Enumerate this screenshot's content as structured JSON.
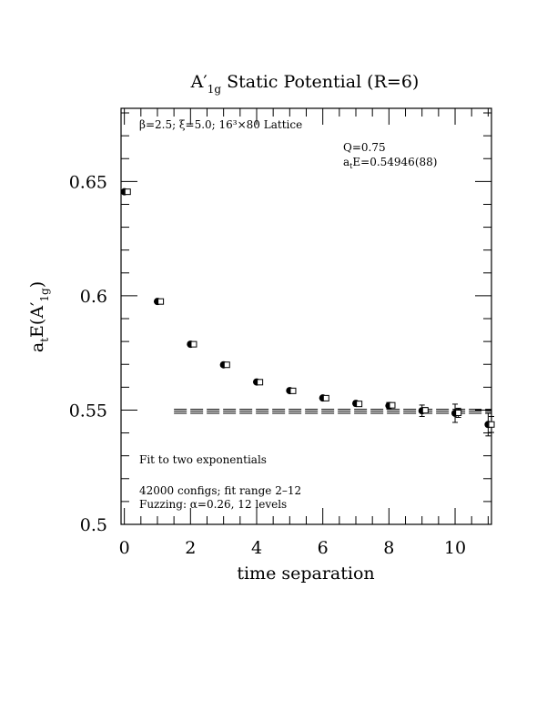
{
  "chart_data": {
    "type": "scatter",
    "title": "A′1g Static Potential (R=6)",
    "title_main": "A",
    "title_prime": "′",
    "title_sub": "1g",
    "title_rest": " Static Potential (R=6)",
    "xlabel": "time separation",
    "ylabel": "a_t E(A′1g)",
    "ylabel_parts": {
      "a": "a",
      "t": "t",
      "E": "E(A",
      "prime": "′",
      "sub": "1g",
      "close": ")"
    },
    "xlim": [
      -0.1,
      11.1
    ],
    "ylim": [
      0.5,
      0.682
    ],
    "xticks": [
      0,
      2,
      4,
      6,
      8,
      10
    ],
    "xtick_labels": [
      "0",
      "2",
      "4",
      "6",
      "8",
      "10"
    ],
    "yticks": [
      0.5,
      0.55,
      0.6,
      0.65
    ],
    "ytick_labels": [
      "0.5",
      "0.55",
      "0.6",
      "0.65"
    ],
    "series": [
      {
        "marker": "filled-circle",
        "x": [
          0,
          1,
          2,
          3,
          4,
          5,
          6,
          7,
          8,
          9,
          10,
          11
        ],
        "y": [
          0.6455,
          0.5975,
          0.5788,
          0.5698,
          0.5623,
          0.5585,
          0.5553,
          0.5529,
          0.5519,
          0.5497,
          0.5486,
          0.5437
        ],
        "err": [
          0.0004,
          0.0005,
          0.0005,
          0.0005,
          0.0006,
          0.0007,
          0.0008,
          0.001,
          0.0014,
          0.0025,
          0.004,
          0.005
        ]
      },
      {
        "marker": "open-square",
        "x": [
          0.1,
          1.1,
          2.1,
          3.1,
          4.1,
          5.1,
          6.1,
          7.1,
          8.1,
          9.1,
          10.1,
          11.1
        ],
        "y": [
          0.6455,
          0.5975,
          0.5788,
          0.5698,
          0.5622,
          0.5584,
          0.5552,
          0.5527,
          0.5521,
          0.5499,
          0.5488,
          0.5437
        ],
        "err": [
          0.0003,
          0.0004,
          0.0004,
          0.0004,
          0.0005,
          0.0005,
          0.0006,
          0.0006,
          0.0008,
          0.0012,
          0.002,
          0.0035
        ]
      }
    ],
    "fit": {
      "x_range": [
        1.5,
        11.1
      ],
      "value": 0.54946,
      "error": 0.00088
    },
    "annotations": {
      "lattice_line": "β=2.5; ξ=5.0; 16³×80 Lattice",
      "q_value": "Q=0.75",
      "energy": "a_t E=0.54946(88)",
      "energy_a": "a",
      "energy_t": "t",
      "energy_rest": "E=0.54946(88)",
      "fit_desc": "Fit to two exponentials",
      "configs": "42000 configs; fit range 2–12",
      "fuzzing": "Fuzzing: α=0.26, 12 levels"
    },
    "grid": false
  }
}
